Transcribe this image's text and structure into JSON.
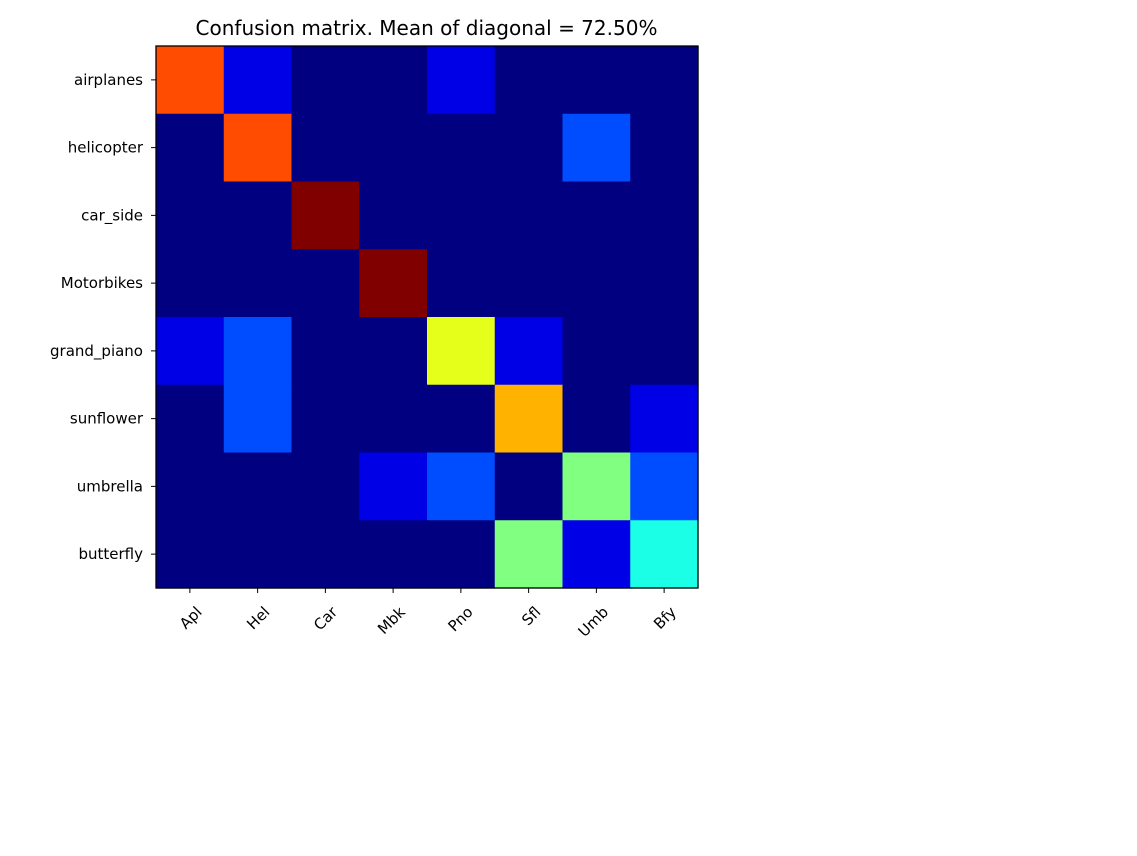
{
  "chart_data": {
    "type": "heatmap",
    "title": "Confusion matrix. Mean of diagonal = 72.50%",
    "xlabel": "",
    "ylabel": "",
    "row_labels": [
      "airplanes",
      "helicopter",
      "car_side",
      "Motorbikes",
      "grand_piano",
      "sunflower",
      "umbrella",
      "butterfly"
    ],
    "col_labels": [
      "Apl",
      "Hel",
      "Car",
      "Mbk",
      "Pno",
      "Sfl",
      "Umb",
      "Bfy"
    ],
    "colormap": "jet",
    "value_range": [
      0,
      1
    ],
    "x_tick_rotation_deg": 45,
    "grid": false,
    "colorbar": false,
    "values": [
      [
        0.8,
        0.1,
        0.0,
        0.0,
        0.1,
        0.0,
        0.0,
        0.0
      ],
      [
        0.0,
        0.8,
        0.0,
        0.0,
        0.0,
        0.0,
        0.2,
        0.0
      ],
      [
        0.0,
        0.0,
        1.0,
        0.0,
        0.0,
        0.0,
        0.0,
        0.0
      ],
      [
        0.0,
        0.0,
        0.0,
        1.0,
        0.0,
        0.0,
        0.0,
        0.0
      ],
      [
        0.1,
        0.2,
        0.0,
        0.0,
        0.6,
        0.1,
        0.0,
        0.0
      ],
      [
        0.0,
        0.2,
        0.0,
        0.0,
        0.0,
        0.7,
        0.0,
        0.1
      ],
      [
        0.0,
        0.0,
        0.0,
        0.1,
        0.2,
        0.0,
        0.5,
        0.2
      ],
      [
        0.0,
        0.0,
        0.0,
        0.0,
        0.0,
        0.5,
        0.1,
        0.4
      ]
    ]
  }
}
